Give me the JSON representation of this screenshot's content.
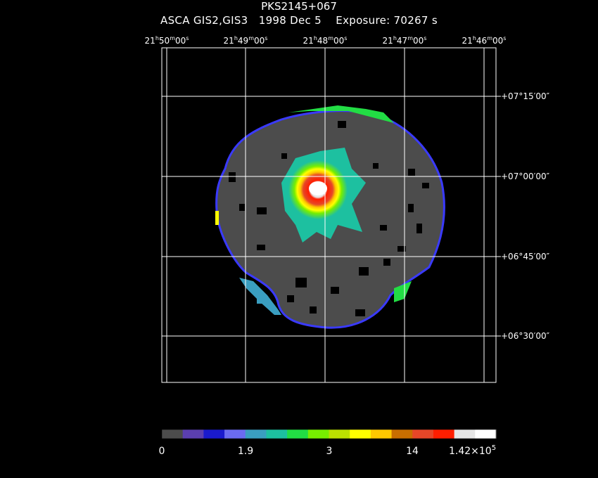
{
  "header": {
    "object": "PKS2145+067",
    "instrument": "ASCA GIS2,GIS3",
    "date": "1998 Dec  5",
    "exposure": "Exposure: 70267 s"
  },
  "ra_labels": [
    {
      "h": "21",
      "m": "50",
      "s": "00"
    },
    {
      "h": "21",
      "m": "49",
      "s": "00"
    },
    {
      "h": "21",
      "m": "48",
      "s": "00"
    },
    {
      "h": "21",
      "m": "47",
      "s": "00"
    },
    {
      "h": "21",
      "m": "46",
      "s": "00"
    }
  ],
  "dec_labels": [
    {
      "d": "+07",
      "m": "15",
      "s": "00"
    },
    {
      "d": "+07",
      "m": "00",
      "s": "00"
    },
    {
      "d": "+06",
      "m": "45",
      "s": "00"
    },
    {
      "d": "+06",
      "m": "30",
      "s": "00"
    }
  ],
  "colorbar": {
    "colors": [
      "#4c4c4c",
      "#5b3fb0",
      "#1a1acd",
      "#6b6bf0",
      "#3a9ec0",
      "#1dc0a0",
      "#22dd44",
      "#77ee00",
      "#bbe000",
      "#ffff00",
      "#ffc800",
      "#c86e00",
      "#e64628",
      "#ff1e00",
      "#e6e6e6",
      "#ffffff"
    ],
    "labels": [
      "0",
      "1.9",
      "3",
      "14"
    ],
    "max_label": {
      "base": "1.42×10",
      "exp": "5"
    }
  }
}
